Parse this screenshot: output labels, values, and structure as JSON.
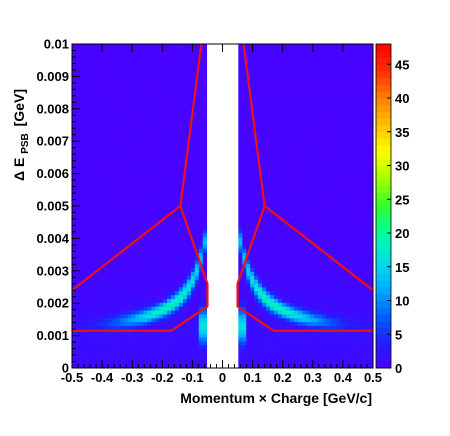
{
  "chart_data": {
    "type": "heatmap",
    "title": "",
    "xlabel": "Momentum × Charge [GeV/c]",
    "ylabel": {
      "main": "Δ E",
      "subscript": "PSB",
      "unit": "[GeV]"
    },
    "xlim": [
      -0.5,
      0.5
    ],
    "ylim": [
      0.0,
      0.01
    ],
    "x_ticks": [
      -0.5,
      -0.4,
      -0.3,
      -0.2,
      -0.1,
      0,
      0.1,
      0.2,
      0.3,
      0.4,
      0.5
    ],
    "x_tick_labels": [
      "-0.5",
      "-0.4",
      "-0.3",
      "-0.2",
      "-0.1",
      "0",
      "0.1",
      "0.2",
      "0.3",
      "0.4",
      "0.5"
    ],
    "y_ticks": [
      0,
      0.001,
      0.002,
      0.003,
      0.004,
      0.005,
      0.006,
      0.007,
      0.008,
      0.009,
      0.01
    ],
    "y_tick_labels": [
      "0",
      "0.001",
      "0.002",
      "0.003",
      "0.004",
      "0.005",
      "0.006",
      "0.007",
      "0.008",
      "0.009",
      "0.01"
    ],
    "colorbar": {
      "min": 0,
      "max": 48,
      "ticks": [
        0,
        5,
        10,
        15,
        20,
        25,
        30,
        35,
        40,
        45
      ],
      "tick_labels": [
        "0",
        "5",
        "10",
        "15",
        "20",
        "25",
        "30",
        "35",
        "40",
        "45"
      ],
      "palette": [
        "#4b00ff",
        "#2020ff",
        "#0066ff",
        "#00b0ff",
        "#00e0e0",
        "#00ffa0",
        "#30ff30",
        "#a0ff00",
        "#ffff00",
        "#ffc000",
        "#ff8000",
        "#ff3000",
        "#ff0000"
      ]
    },
    "empty_band_x": [
      -0.05,
      0.05
    ],
    "cut_color": "#ee1111",
    "cut_regions": [
      {
        "name": "",
        "points": [
          [
            -0.5,
            0.00115
          ],
          [
            -0.17,
            0.00115
          ],
          [
            -0.05,
            0.0019
          ],
          [
            -0.05,
            0.0026
          ],
          [
            -0.14,
            0.005
          ],
          [
            -0.07,
            0.01
          ]
        ]
      },
      {
        "name": "",
        "points": [
          [
            -0.5,
            0.0024
          ],
          [
            -0.14,
            0.005
          ]
        ]
      },
      {
        "name": "",
        "points": [
          [
            0.5,
            0.00115
          ],
          [
            0.17,
            0.00115
          ],
          [
            0.05,
            0.0019
          ],
          [
            0.05,
            0.0026
          ],
          [
            0.14,
            0.005
          ],
          [
            0.07,
            0.01
          ]
        ]
      },
      {
        "name": "",
        "points": [
          [
            0.5,
            0.0024
          ],
          [
            0.14,
            0.005
          ]
        ]
      }
    ]
  }
}
